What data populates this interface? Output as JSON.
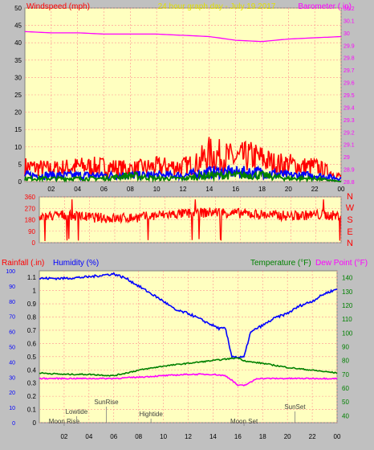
{
  "chart_data": [
    {
      "type": "line",
      "title": "24 hour graph day - July 19 2017",
      "left_axis_label": "Windspeed (mph)",
      "right_axis_label": "Barometer (.in)",
      "x_ticks": [
        "02",
        "04",
        "06",
        "08",
        "10",
        "12",
        "14",
        "16",
        "18",
        "20",
        "22",
        "00"
      ],
      "x_range_hours": [
        0,
        24
      ],
      "left_ylim": [
        0,
        50
      ],
      "left_ticks": [
        0,
        5,
        10,
        15,
        20,
        25,
        30,
        35,
        40,
        45,
        50
      ],
      "right_ylim": [
        28.8,
        30.2
      ],
      "right_ticks": [
        "28.8",
        "28.9",
        "29",
        "29.1",
        "29.2",
        "29.3",
        "29.4",
        "29.5",
        "29.6",
        "29.7",
        "29.8",
        "29.9",
        "30",
        "30.1",
        "30.2"
      ],
      "grid": true,
      "series": [
        {
          "color": "#ff00ff",
          "axis": "right",
          "x": [
            0,
            2,
            4,
            6,
            8,
            10,
            12,
            14,
            16,
            18,
            20,
            22,
            24
          ],
          "values": [
            30.01,
            30.0,
            30.0,
            29.99,
            29.99,
            29.99,
            29.98,
            29.97,
            29.94,
            29.93,
            29.95,
            29.96,
            29.97
          ]
        },
        {
          "color": "#ff0000",
          "axis": "left",
          "style": "gust-band",
          "x": [
            0,
            2,
            4,
            6,
            8,
            10,
            12,
            13,
            14,
            15,
            16,
            17,
            18,
            19,
            20,
            21,
            22,
            23,
            24
          ],
          "values": [
            6,
            5,
            6,
            6,
            5,
            6,
            6,
            7,
            11,
            10,
            9,
            10,
            9,
            7,
            7,
            6,
            6,
            4,
            2
          ]
        },
        {
          "color": "#0000ff",
          "axis": "left",
          "x": [
            0,
            2,
            4,
            6,
            8,
            10,
            12,
            14,
            16,
            18,
            20,
            22,
            24
          ],
          "values": [
            2,
            2,
            2,
            2,
            2,
            2,
            2,
            3,
            3,
            3,
            2,
            2,
            1
          ]
        },
        {
          "color": "#008000",
          "axis": "left",
          "x": [
            0,
            2,
            4,
            6,
            8,
            10,
            12,
            14,
            16,
            18,
            20,
            22,
            24
          ],
          "values": [
            1,
            1,
            1,
            1,
            2,
            1,
            1,
            2,
            2,
            2,
            1,
            1,
            0
          ]
        }
      ]
    },
    {
      "type": "line",
      "right_axis_letters": [
        "N",
        "W",
        "S",
        "E",
        "N"
      ],
      "ylim": [
        0,
        360
      ],
      "ticks": [
        0,
        90,
        180,
        270,
        360
      ],
      "grid": true,
      "series": [
        {
          "color": "#ff0000",
          "x": [
            0,
            2,
            4,
            6,
            8,
            10,
            12,
            14,
            16,
            18,
            20,
            22,
            24
          ],
          "values": [
            200,
            220,
            200,
            190,
            200,
            220,
            230,
            240,
            230,
            220,
            210,
            220,
            210
          ]
        }
      ]
    },
    {
      "type": "line",
      "left_label_1": "Rainfall (.in)",
      "left_label_2": "Humidity (%)",
      "right_label_1": "Temperature (°F)",
      "right_label_2": "Dew Point (°F)",
      "humidity_ylim": [
        0,
        100
      ],
      "humidity_ticks": [
        0,
        10,
        20,
        30,
        40,
        50,
        60,
        70,
        80,
        90,
        100
      ],
      "rain_ylim": [
        0,
        1.15
      ],
      "rain_ticks": [
        "0",
        "0.1",
        "0.2",
        "0.3",
        "0.4",
        "0.5",
        "0.6",
        "0.7",
        "0.8",
        "0.9",
        "1",
        "1.1"
      ],
      "temp_ylim": [
        35,
        145
      ],
      "temp_ticks": [
        40,
        50,
        60,
        70,
        80,
        90,
        100,
        110,
        120,
        130,
        140
      ],
      "x_ticks": [
        "02",
        "04",
        "06",
        "08",
        "10",
        "12",
        "14",
        "16",
        "18",
        "20",
        "22",
        "00"
      ],
      "grid": true,
      "events": [
        {
          "label": "Moon Rise",
          "hour": 2.0
        },
        {
          "label": "Lowtide",
          "hour": 3.0
        },
        {
          "label": "SunRise",
          "hour": 5.4
        },
        {
          "label": "Hightide",
          "hour": 9.0
        },
        {
          "label": "Moon Set",
          "hour": 16.5
        },
        {
          "label": "SunSet",
          "hour": 20.6
        }
      ],
      "series": [
        {
          "color": "#0000ff",
          "axis": "humidity",
          "x": [
            0,
            2,
            4,
            6,
            7,
            8,
            9,
            10,
            11,
            12,
            13,
            14,
            14.5,
            15,
            15.5,
            16,
            16.5,
            17,
            17.5,
            18,
            19,
            20,
            21,
            22,
            23,
            24
          ],
          "values": [
            95,
            95,
            96,
            98,
            95,
            90,
            85,
            80,
            74,
            72,
            68,
            64,
            62,
            62,
            44,
            43,
            43,
            59,
            62,
            64,
            69,
            72,
            77,
            80,
            85,
            88
          ]
        },
        {
          "color": "#008000",
          "axis": "temp",
          "x": [
            0,
            2,
            4,
            6,
            8,
            10,
            12,
            14,
            15,
            16,
            16.5,
            17,
            18,
            20,
            22,
            24
          ],
          "values": [
            71,
            70,
            70,
            69,
            73,
            76,
            78,
            80,
            81,
            82,
            80,
            79,
            78,
            75,
            73,
            71
          ]
        },
        {
          "color": "#ff00ff",
          "axis": "temp",
          "x": [
            0,
            2,
            4,
            6,
            8,
            10,
            12,
            14,
            15,
            15.5,
            16,
            16.5,
            17,
            17.5,
            18,
            20,
            22,
            24
          ],
          "values": [
            67,
            67,
            67,
            67,
            68,
            69,
            70,
            70,
            69,
            66,
            62,
            62,
            64,
            67,
            67,
            67,
            67,
            67
          ]
        }
      ]
    }
  ]
}
